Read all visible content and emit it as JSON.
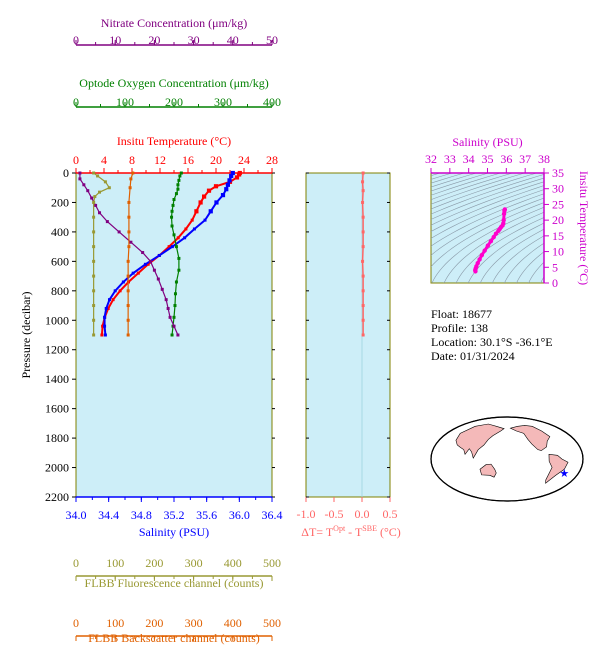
{
  "colors": {
    "nitrate": "#800080",
    "oxygen": "#008000",
    "temperature": "#ff0000",
    "salinity": "#0000ff",
    "fluorescence": "#999933",
    "backscatter": "#e06000",
    "delta_t": "#ff6666",
    "ts_axis": "#cc00cc",
    "panel_bg": "#cdeef8",
    "axis_frame": "#808000"
  },
  "float_info": {
    "float_line": "Float:  18677",
    "profile_line": "Profile:  138",
    "location_line": "Location:  30.1°S  -36.1°E",
    "date_line": "Date:  01/31/2024"
  },
  "chart_data": [
    {
      "type": "line",
      "panel": "main-profile",
      "ylabel": "Pressure (decibar)",
      "ylim": [
        0,
        2200
      ],
      "yticks": [
        "0",
        "200",
        "400",
        "600",
        "800",
        "1000",
        "1200",
        "1400",
        "1600",
        "1800",
        "2000",
        "2200"
      ],
      "axes": [
        {
          "key": "nitrate",
          "label": "Nitrate Concentration (μm/kg)",
          "range": [
            0,
            50
          ],
          "ticks": [
            "0",
            "10",
            "20",
            "30",
            "40",
            "50"
          ],
          "position": "top-1"
        },
        {
          "key": "oxygen",
          "label": "Optode Oxygen Concentration (μm/kg)",
          "range": [
            0,
            400
          ],
          "ticks": [
            "0",
            "100",
            "200",
            "300",
            "400"
          ],
          "position": "top-2"
        },
        {
          "key": "temperature",
          "label": "Insitu Temperature (°C)",
          "range": [
            0,
            28
          ],
          "ticks": [
            "0",
            "4",
            "8",
            "12",
            "16",
            "20",
            "24",
            "28"
          ],
          "position": "top-3"
        },
        {
          "key": "salinity",
          "label": "Salinity (PSU)",
          "range": [
            34.0,
            36.4
          ],
          "ticks": [
            "34.0",
            "34.4",
            "34.8",
            "35.2",
            "35.6",
            "36.0",
            "36.4"
          ],
          "position": "bottom-1"
        },
        {
          "key": "fluorescence",
          "label": "FLBB Fluorescence channel (counts)",
          "range": [
            0,
            500
          ],
          "ticks": [
            "0",
            "100",
            "200",
            "300",
            "400",
            "500"
          ],
          "position": "bottom-2"
        },
        {
          "key": "backscatter",
          "label": "FLBB Backscatter channel (counts)",
          "range": [
            0,
            500
          ],
          "ticks": [
            "0",
            "100",
            "200",
            "300",
            "400",
            "500"
          ],
          "position": "bottom-3"
        }
      ],
      "series": [
        {
          "key": "temperature",
          "points": [
            [
              23.4,
              0
            ],
            [
              23.3,
              10
            ],
            [
              23.0,
              30
            ],
            [
              22.0,
              60
            ],
            [
              20.0,
              90
            ],
            [
              19.0,
              120
            ],
            [
              18.3,
              160
            ],
            [
              17.8,
              200
            ],
            [
              17.2,
              260
            ],
            [
              16.6,
              320
            ],
            [
              15.7,
              380
            ],
            [
              14.6,
              440
            ],
            [
              13.3,
              500
            ],
            [
              11.9,
              560
            ],
            [
              10.3,
              620
            ],
            [
              8.9,
              680
            ],
            [
              7.5,
              740
            ],
            [
              6.3,
              800
            ],
            [
              5.3,
              860
            ],
            [
              4.6,
              920
            ],
            [
              4.1,
              980
            ],
            [
              3.8,
              1040
            ],
            [
              3.7,
              1100
            ]
          ]
        },
        {
          "key": "salinity",
          "points": [
            [
              35.92,
              0
            ],
            [
              35.9,
              20
            ],
            [
              35.88,
              50
            ],
            [
              35.86,
              80
            ],
            [
              35.84,
              110
            ],
            [
              35.8,
              150
            ],
            [
              35.72,
              200
            ],
            [
              35.65,
              260
            ],
            [
              35.58,
              320
            ],
            [
              35.45,
              380
            ],
            [
              35.33,
              440
            ],
            [
              35.18,
              500
            ],
            [
              35.02,
              560
            ],
            [
              34.85,
              620
            ],
            [
              34.7,
              680
            ],
            [
              34.58,
              740
            ],
            [
              34.48,
              800
            ],
            [
              34.41,
              860
            ],
            [
              34.37,
              920
            ],
            [
              34.35,
              980
            ],
            [
              34.35,
              1040
            ],
            [
              34.36,
              1100
            ]
          ]
        },
        {
          "key": "oxygen",
          "points": [
            [
              215,
              0
            ],
            [
              212,
              20
            ],
            [
              210,
              50
            ],
            [
              208,
              80
            ],
            [
              208,
              110
            ],
            [
              205,
              140
            ],
            [
              200,
              180
            ],
            [
              198,
              220
            ],
            [
              196,
              260
            ],
            [
              195,
              300
            ],
            [
              196,
              360
            ],
            [
              200,
              420
            ],
            [
              205,
              500
            ],
            [
              210,
              580
            ],
            [
              210,
              660
            ],
            [
              205,
              740
            ],
            [
              203,
              820
            ],
            [
              202,
              900
            ],
            [
              200,
              980
            ],
            [
              198,
              1040
            ],
            [
              196,
              1100
            ]
          ]
        },
        {
          "key": "nitrate",
          "points": [
            [
              1,
              0
            ],
            [
              1,
              40
            ],
            [
              2,
              80
            ],
            [
              3,
              120
            ],
            [
              4,
              170
            ],
            [
              5,
              220
            ],
            [
              6,
              270
            ],
            [
              8,
              330
            ],
            [
              11,
              400
            ],
            [
              14,
              470
            ],
            [
              17,
              540
            ],
            [
              19,
              600
            ],
            [
              20,
              660
            ],
            [
              21,
              720
            ],
            [
              22,
              790
            ],
            [
              23,
              860
            ],
            [
              23.5,
              920
            ],
            [
              24,
              980
            ],
            [
              25,
              1040
            ],
            [
              26,
              1100
            ]
          ]
        },
        {
          "key": "fluorescence",
          "points": [
            [
              45,
              0
            ],
            [
              55,
              20
            ],
            [
              75,
              60
            ],
            [
              85,
              100
            ],
            [
              60,
              130
            ],
            [
              48,
              160
            ],
            [
              45,
              200
            ],
            [
              45,
              300
            ],
            [
              45,
              400
            ],
            [
              45,
              500
            ],
            [
              45,
              600
            ],
            [
              45,
              700
            ],
            [
              45,
              800
            ],
            [
              45,
              900
            ],
            [
              45,
              1000
            ],
            [
              45,
              1100
            ]
          ]
        },
        {
          "key": "backscatter",
          "points": [
            [
              145,
              0
            ],
            [
              140,
              40
            ],
            [
              138,
              100
            ],
            [
              135,
              200
            ],
            [
              135,
              300
            ],
            [
              135,
              400
            ],
            [
              135,
              500
            ],
            [
              133,
              600
            ],
            [
              133,
              700
            ],
            [
              133,
              800
            ],
            [
              133,
              900
            ],
            [
              133,
              1000
            ],
            [
              133,
              1100
            ]
          ]
        }
      ]
    },
    {
      "type": "line",
      "panel": "delta-t",
      "xlabel_main": "ΔT= T",
      "xlabel_sup1": "Opt",
      "xlabel_mid": " - T",
      "xlabel_sup2": "SBE",
      "xlabel_unit": " (°C)",
      "xlim": [
        -1.0,
        0.5
      ],
      "xticks": [
        "-1.0",
        "-0.5",
        "0.0",
        "0.5"
      ],
      "ylim": [
        0,
        2200
      ],
      "series": [
        {
          "key": "delta_t",
          "points": [
            [
              0.02,
              0
            ],
            [
              0.01,
              60
            ],
            [
              0.02,
              120
            ],
            [
              0.01,
              200
            ],
            [
              0.02,
              300
            ],
            [
              0.02,
              400
            ],
            [
              0.02,
              500
            ],
            [
              0.01,
              600
            ],
            [
              0.02,
              700
            ],
            [
              0.02,
              800
            ],
            [
              0.02,
              900
            ],
            [
              0.02,
              1000
            ],
            [
              0.02,
              1100
            ]
          ]
        }
      ]
    },
    {
      "type": "scatter",
      "panel": "ts-diagram",
      "xlabel": "Salinity (PSU)",
      "ylabel": "Insitu Temperature (°C)",
      "xlim": [
        32,
        38
      ],
      "ylim": [
        0,
        35
      ],
      "xticks": [
        "32",
        "33",
        "34",
        "35",
        "36",
        "37",
        "38"
      ],
      "yticks": [
        "0",
        "5",
        "10",
        "15",
        "20",
        "25",
        "30",
        "35"
      ],
      "series": [
        {
          "key": "ts",
          "points": [
            [
              34.36,
              3.7
            ],
            [
              34.35,
              4.1
            ],
            [
              34.37,
              4.6
            ],
            [
              34.41,
              5.3
            ],
            [
              34.48,
              6.3
            ],
            [
              34.58,
              7.5
            ],
            [
              34.7,
              8.9
            ],
            [
              34.85,
              10.3
            ],
            [
              35.02,
              11.9
            ],
            [
              35.18,
              13.3
            ],
            [
              35.33,
              14.6
            ],
            [
              35.45,
              15.7
            ],
            [
              35.58,
              16.6
            ],
            [
              35.65,
              17.2
            ],
            [
              35.72,
              17.8
            ],
            [
              35.8,
              18.3
            ],
            [
              35.84,
              19.0
            ],
            [
              35.86,
              20.0
            ],
            [
              35.88,
              22.0
            ],
            [
              35.9,
              23.0
            ],
            [
              35.92,
              23.4
            ]
          ]
        }
      ]
    },
    {
      "type": "scatter",
      "panel": "location-map",
      "marker": {
        "lat": -30.1,
        "lon": -36.1
      }
    }
  ]
}
